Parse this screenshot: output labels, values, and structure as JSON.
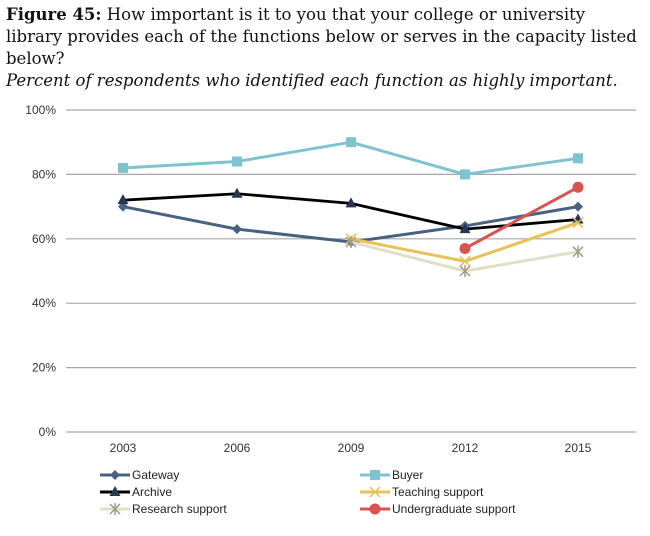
{
  "chart_data": {
    "type": "line",
    "title_label": "Figure 45:",
    "title": "How important is it to you that your college or university library provides each of the functions below or serves in the capacity listed below?",
    "subtitle": "Percent of respondents who identified each function as highly important.",
    "xlabel": "",
    "ylabel": "",
    "categories": [
      "2003",
      "2006",
      "2009",
      "2012",
      "2015"
    ],
    "y_ticks": [
      "0%",
      "20%",
      "40%",
      "60%",
      "80%",
      "100%"
    ],
    "ylim": [
      0,
      100
    ],
    "grid": "horizontal",
    "legend_placement": "bottom",
    "series": [
      {
        "name": "Gateway",
        "color": "#4a6281",
        "marker": "diamond",
        "values": [
          70,
          63,
          59,
          64,
          70
        ]
      },
      {
        "name": "Buyer",
        "color": "#7fc3cf",
        "marker": "square",
        "values": [
          82,
          84,
          90,
          80,
          85
        ]
      },
      {
        "name": "Archive",
        "color": "#000000",
        "marker": "triangle",
        "values": [
          72,
          74,
          71,
          63,
          66
        ]
      },
      {
        "name": "Teaching support",
        "color": "#e8c15a",
        "marker": "x",
        "values": [
          null,
          null,
          60,
          53,
          65
        ]
      },
      {
        "name": "Research support",
        "color": "#e2dfc8",
        "marker": "star",
        "values": [
          null,
          null,
          59,
          50,
          56
        ]
      },
      {
        "name": "Undergraduate support",
        "color": "#d9544f",
        "marker": "circle",
        "values": [
          null,
          null,
          null,
          57,
          76
        ]
      }
    ]
  }
}
